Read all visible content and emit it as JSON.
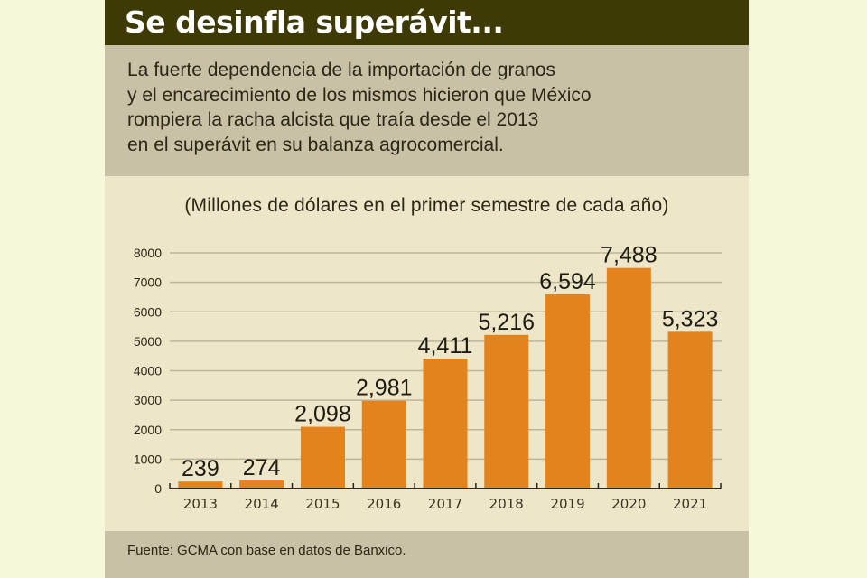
{
  "header": {
    "title": "Se desinfla superávit..."
  },
  "description": {
    "lines": [
      "La fuerte dependencia de la importación de granos",
      "y el encarecimiento de los mismos hicieron que México",
      "rompiera la racha alcista que traía desde el 2013",
      "en el superávit en su balanza agrocomercial."
    ]
  },
  "footer": {
    "source": "Fuente: GCMA con base en datos de Banxico."
  },
  "colors": {
    "header_bg": "#3E3A06",
    "band_bg": "#C8C1A5",
    "chart_bg": "#EDE6C8",
    "bar": "#E2831E",
    "page_bg": "#F7F7DA"
  },
  "chart_data": {
    "type": "bar",
    "title": "Se desinfla superávit...",
    "subtitle": "(Millones de dólares en el primer semestre de cada año)",
    "xlabel": "",
    "ylabel": "",
    "categories": [
      "2013",
      "2014",
      "2015",
      "2016",
      "2017",
      "2018",
      "2019",
      "2020",
      "2021"
    ],
    "values": [
      239,
      274,
      2098,
      2981,
      4411,
      5216,
      6594,
      7488,
      5323
    ],
    "data_labels": [
      "239",
      "274",
      "2,098",
      "2,981",
      "4,411",
      "5,216",
      "6,594",
      "7,488",
      "5,323"
    ],
    "ylim": [
      0,
      8000
    ],
    "yticks": [
      0,
      1000,
      2000,
      3000,
      4000,
      5000,
      6000,
      7000,
      8000
    ],
    "ytick_labels": [
      "0",
      "1000",
      "2000",
      "3000",
      "4000",
      "5000",
      "6000",
      "7000",
      "8000"
    ],
    "grid": true,
    "legend": "none"
  }
}
